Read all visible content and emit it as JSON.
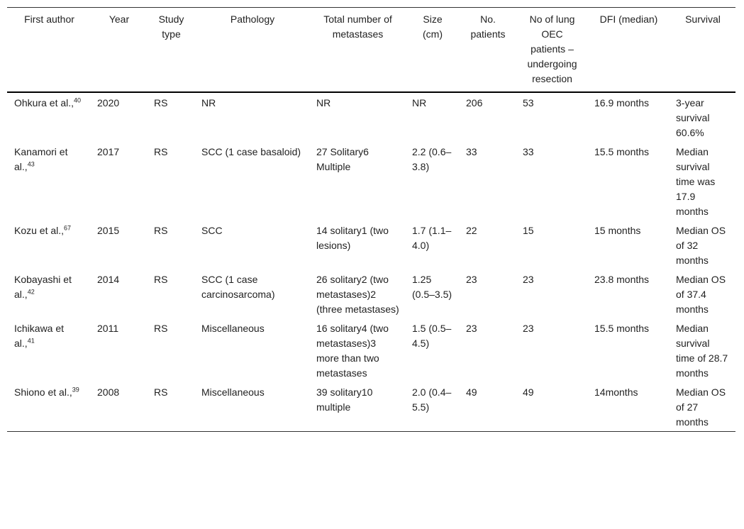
{
  "headers": [
    "First author",
    "Year",
    "Study type",
    "Pathology",
    "Total number of metastases",
    "Size (cm)",
    "No. patients",
    "No of lung OEC patients – undergoing resection",
    "DFI (median)",
    "Survival"
  ],
  "rows": [
    {
      "author": "Ohkura et al.,",
      "ref": "40",
      "year": "2020",
      "study": "RS",
      "pathology": "NR",
      "total": "NR",
      "size": "NR",
      "patients": "206",
      "lung": "53",
      "dfi": "16.9 months",
      "survival": "3-year survival 60.6%"
    },
    {
      "author": "Kanamori et al.,",
      "ref": "43",
      "year": "2017",
      "study": "RS",
      "pathology": "SCC (1 case basaloid)",
      "total": "27 Solitary6 Multiple",
      "size": "2.2 (0.6–3.8)",
      "patients": "33",
      "lung": "33",
      "dfi": "15.5 months",
      "survival": "Median survival time was 17.9 months"
    },
    {
      "author": "Kozu et al.,",
      "ref": "67",
      "year": "2015",
      "study": "RS",
      "pathology": "SCC",
      "total": "14 solitary1 (two lesions)",
      "size": "1.7 (1.1–4.0)",
      "patients": "22",
      "lung": "15",
      "dfi": "15 months",
      "survival": "Median OS of 32 months"
    },
    {
      "author": "Kobayashi et al.,",
      "ref": "42",
      "year": "2014",
      "study": "RS",
      "pathology": "SCC (1 case carcinosarcoma)",
      "total": "26 solitary2 (two metastases)2 (three metastases)",
      "size": "1.25 (0.5–3.5)",
      "patients": "23",
      "lung": "23",
      "dfi": "23.8 months",
      "survival": "Median OS of 37.4 months"
    },
    {
      "author": "Ichikawa et al.,",
      "ref": "41",
      "year": "2011",
      "study": "RS",
      "pathology": "Miscellaneous",
      "total": "16 solitary4 (two metastases)3 more than two metastases",
      "size": "1.5 (0.5–4.5)",
      "patients": "23",
      "lung": "23",
      "dfi": "15.5 months",
      "survival": "Median survival time of 28.7 months"
    },
    {
      "author": "Shiono et al.,",
      "ref": "39",
      "year": "2008",
      "study": "RS",
      "pathology": "Miscellaneous",
      "total": "39 solitary10 multiple",
      "size": "2.0 (0.4–5.5)",
      "patients": "49",
      "lung": "49",
      "dfi": "14months",
      "survival": "Median OS of 27 months"
    }
  ]
}
